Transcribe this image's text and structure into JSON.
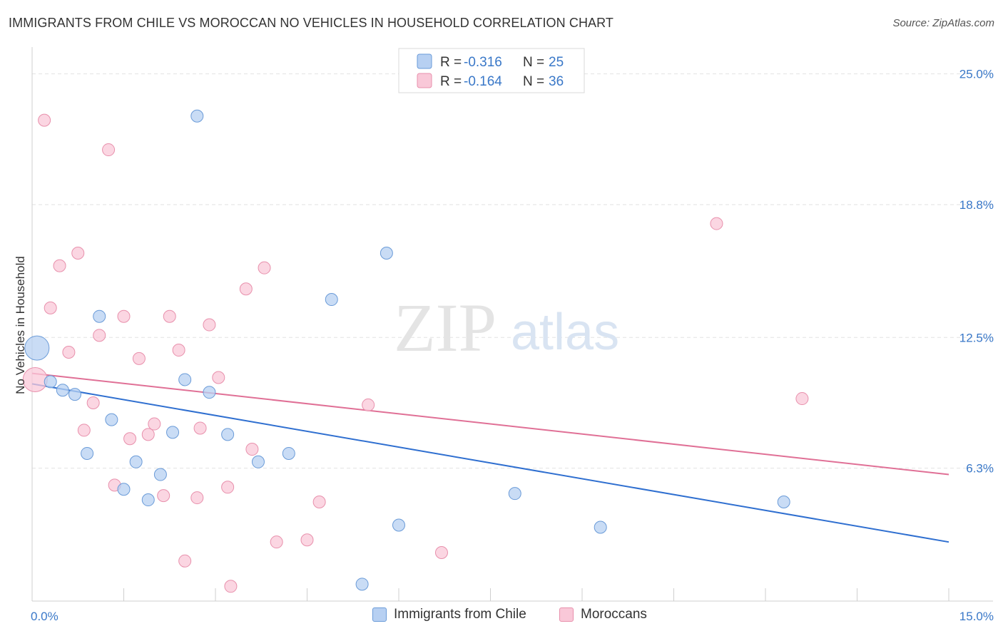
{
  "header": {
    "title": "IMMIGRANTS FROM CHILE VS MOROCCAN NO VEHICLES IN HOUSEHOLD CORRELATION CHART",
    "source": "Source: ZipAtlas.com"
  },
  "watermark": {
    "zip": "ZIP",
    "atlas": "atlas"
  },
  "colors": {
    "chile_fill": "#b7d0f2",
    "chile_stroke": "#6a9bd8",
    "chile_line": "#2f6fd0",
    "moroccan_fill": "#f9c8d8",
    "moroccan_stroke": "#e890ac",
    "moroccan_line": "#e07096",
    "grid": "#e2e2e2",
    "tick_text": "#3a78c8"
  },
  "legend_box": {
    "rows": [
      {
        "r_label": "R = ",
        "r_value": "-0.316",
        "n_label": "N = ",
        "n_value": "25"
      },
      {
        "r_label": "R = ",
        "r_value": "-0.164",
        "n_label": "N = ",
        "n_value": "36"
      }
    ]
  },
  "bottom_legend": {
    "chile": "Immigrants from Chile",
    "moroccan": "Moroccans"
  },
  "chart_data": {
    "type": "scatter",
    "title": "IMMIGRANTS FROM CHILE VS MOROCCAN NO VEHICLES IN HOUSEHOLD CORRELATION CHART",
    "xlabel": "",
    "ylabel": "No Vehicles in Household",
    "xlim": [
      0,
      15
    ],
    "ylim": [
      0,
      26
    ],
    "x_tick_labels": [
      "0.0%",
      "15.0%"
    ],
    "y_ticks": [
      6.3,
      12.5,
      18.8,
      25.0
    ],
    "y_tick_labels": [
      "6.3%",
      "12.5%",
      "18.8%",
      "25.0%"
    ],
    "grid": true,
    "legend_position": "top-center",
    "series": [
      {
        "name": "Immigrants from Chile",
        "r": -0.316,
        "n": 25,
        "trend": {
          "x": [
            0,
            15
          ],
          "y": [
            10.3,
            2.8
          ]
        },
        "points": [
          {
            "x": 0.08,
            "y": 12.0,
            "big": true
          },
          {
            "x": 0.3,
            "y": 10.4
          },
          {
            "x": 0.5,
            "y": 10.0
          },
          {
            "x": 0.7,
            "y": 9.8
          },
          {
            "x": 0.9,
            "y": 7.0
          },
          {
            "x": 1.1,
            "y": 13.5
          },
          {
            "x": 1.3,
            "y": 8.6
          },
          {
            "x": 1.5,
            "y": 5.3
          },
          {
            "x": 1.7,
            "y": 6.6
          },
          {
            "x": 1.9,
            "y": 4.8
          },
          {
            "x": 2.1,
            "y": 6.0
          },
          {
            "x": 2.3,
            "y": 8.0
          },
          {
            "x": 2.5,
            "y": 10.5
          },
          {
            "x": 2.7,
            "y": 23.0
          },
          {
            "x": 2.9,
            "y": 9.9
          },
          {
            "x": 3.2,
            "y": 7.9
          },
          {
            "x": 3.7,
            "y": 6.6
          },
          {
            "x": 4.2,
            "y": 7.0
          },
          {
            "x": 4.9,
            "y": 14.3
          },
          {
            "x": 5.4,
            "y": 0.8
          },
          {
            "x": 5.8,
            "y": 16.5
          },
          {
            "x": 6.0,
            "y": 3.6
          },
          {
            "x": 7.9,
            "y": 5.1
          },
          {
            "x": 9.3,
            "y": 3.5
          },
          {
            "x": 12.3,
            "y": 4.7
          }
        ]
      },
      {
        "name": "Moroccans",
        "r": -0.164,
        "n": 36,
        "trend": {
          "x": [
            0,
            15
          ],
          "y": [
            10.8,
            6.0
          ]
        },
        "points": [
          {
            "x": 0.05,
            "y": 10.5,
            "big": true
          },
          {
            "x": 0.2,
            "y": 22.8
          },
          {
            "x": 0.3,
            "y": 13.9
          },
          {
            "x": 0.45,
            "y": 15.9
          },
          {
            "x": 0.6,
            "y": 11.8
          },
          {
            "x": 0.75,
            "y": 16.5
          },
          {
            "x": 0.85,
            "y": 8.1
          },
          {
            "x": 1.0,
            "y": 9.4
          },
          {
            "x": 1.1,
            "y": 12.6
          },
          {
            "x": 1.25,
            "y": 21.4
          },
          {
            "x": 1.35,
            "y": 5.5
          },
          {
            "x": 1.5,
            "y": 13.5
          },
          {
            "x": 1.6,
            "y": 7.7
          },
          {
            "x": 1.75,
            "y": 11.5
          },
          {
            "x": 1.9,
            "y": 7.9
          },
          {
            "x": 2.0,
            "y": 8.4
          },
          {
            "x": 2.15,
            "y": 5.0
          },
          {
            "x": 2.25,
            "y": 13.5
          },
          {
            "x": 2.4,
            "y": 11.9
          },
          {
            "x": 2.5,
            "y": 1.9
          },
          {
            "x": 2.7,
            "y": 4.9
          },
          {
            "x": 2.75,
            "y": 8.2
          },
          {
            "x": 2.9,
            "y": 13.1
          },
          {
            "x": 3.05,
            "y": 10.6
          },
          {
            "x": 3.2,
            "y": 5.4
          },
          {
            "x": 3.25,
            "y": 0.7
          },
          {
            "x": 3.5,
            "y": 14.8
          },
          {
            "x": 3.6,
            "y": 7.2
          },
          {
            "x": 3.8,
            "y": 15.8
          },
          {
            "x": 4.0,
            "y": 2.8
          },
          {
            "x": 4.5,
            "y": 2.9
          },
          {
            "x": 4.7,
            "y": 4.7
          },
          {
            "x": 5.5,
            "y": 9.3
          },
          {
            "x": 6.7,
            "y": 2.3
          },
          {
            "x": 11.2,
            "y": 17.9
          },
          {
            "x": 12.6,
            "y": 9.6
          }
        ]
      }
    ]
  }
}
